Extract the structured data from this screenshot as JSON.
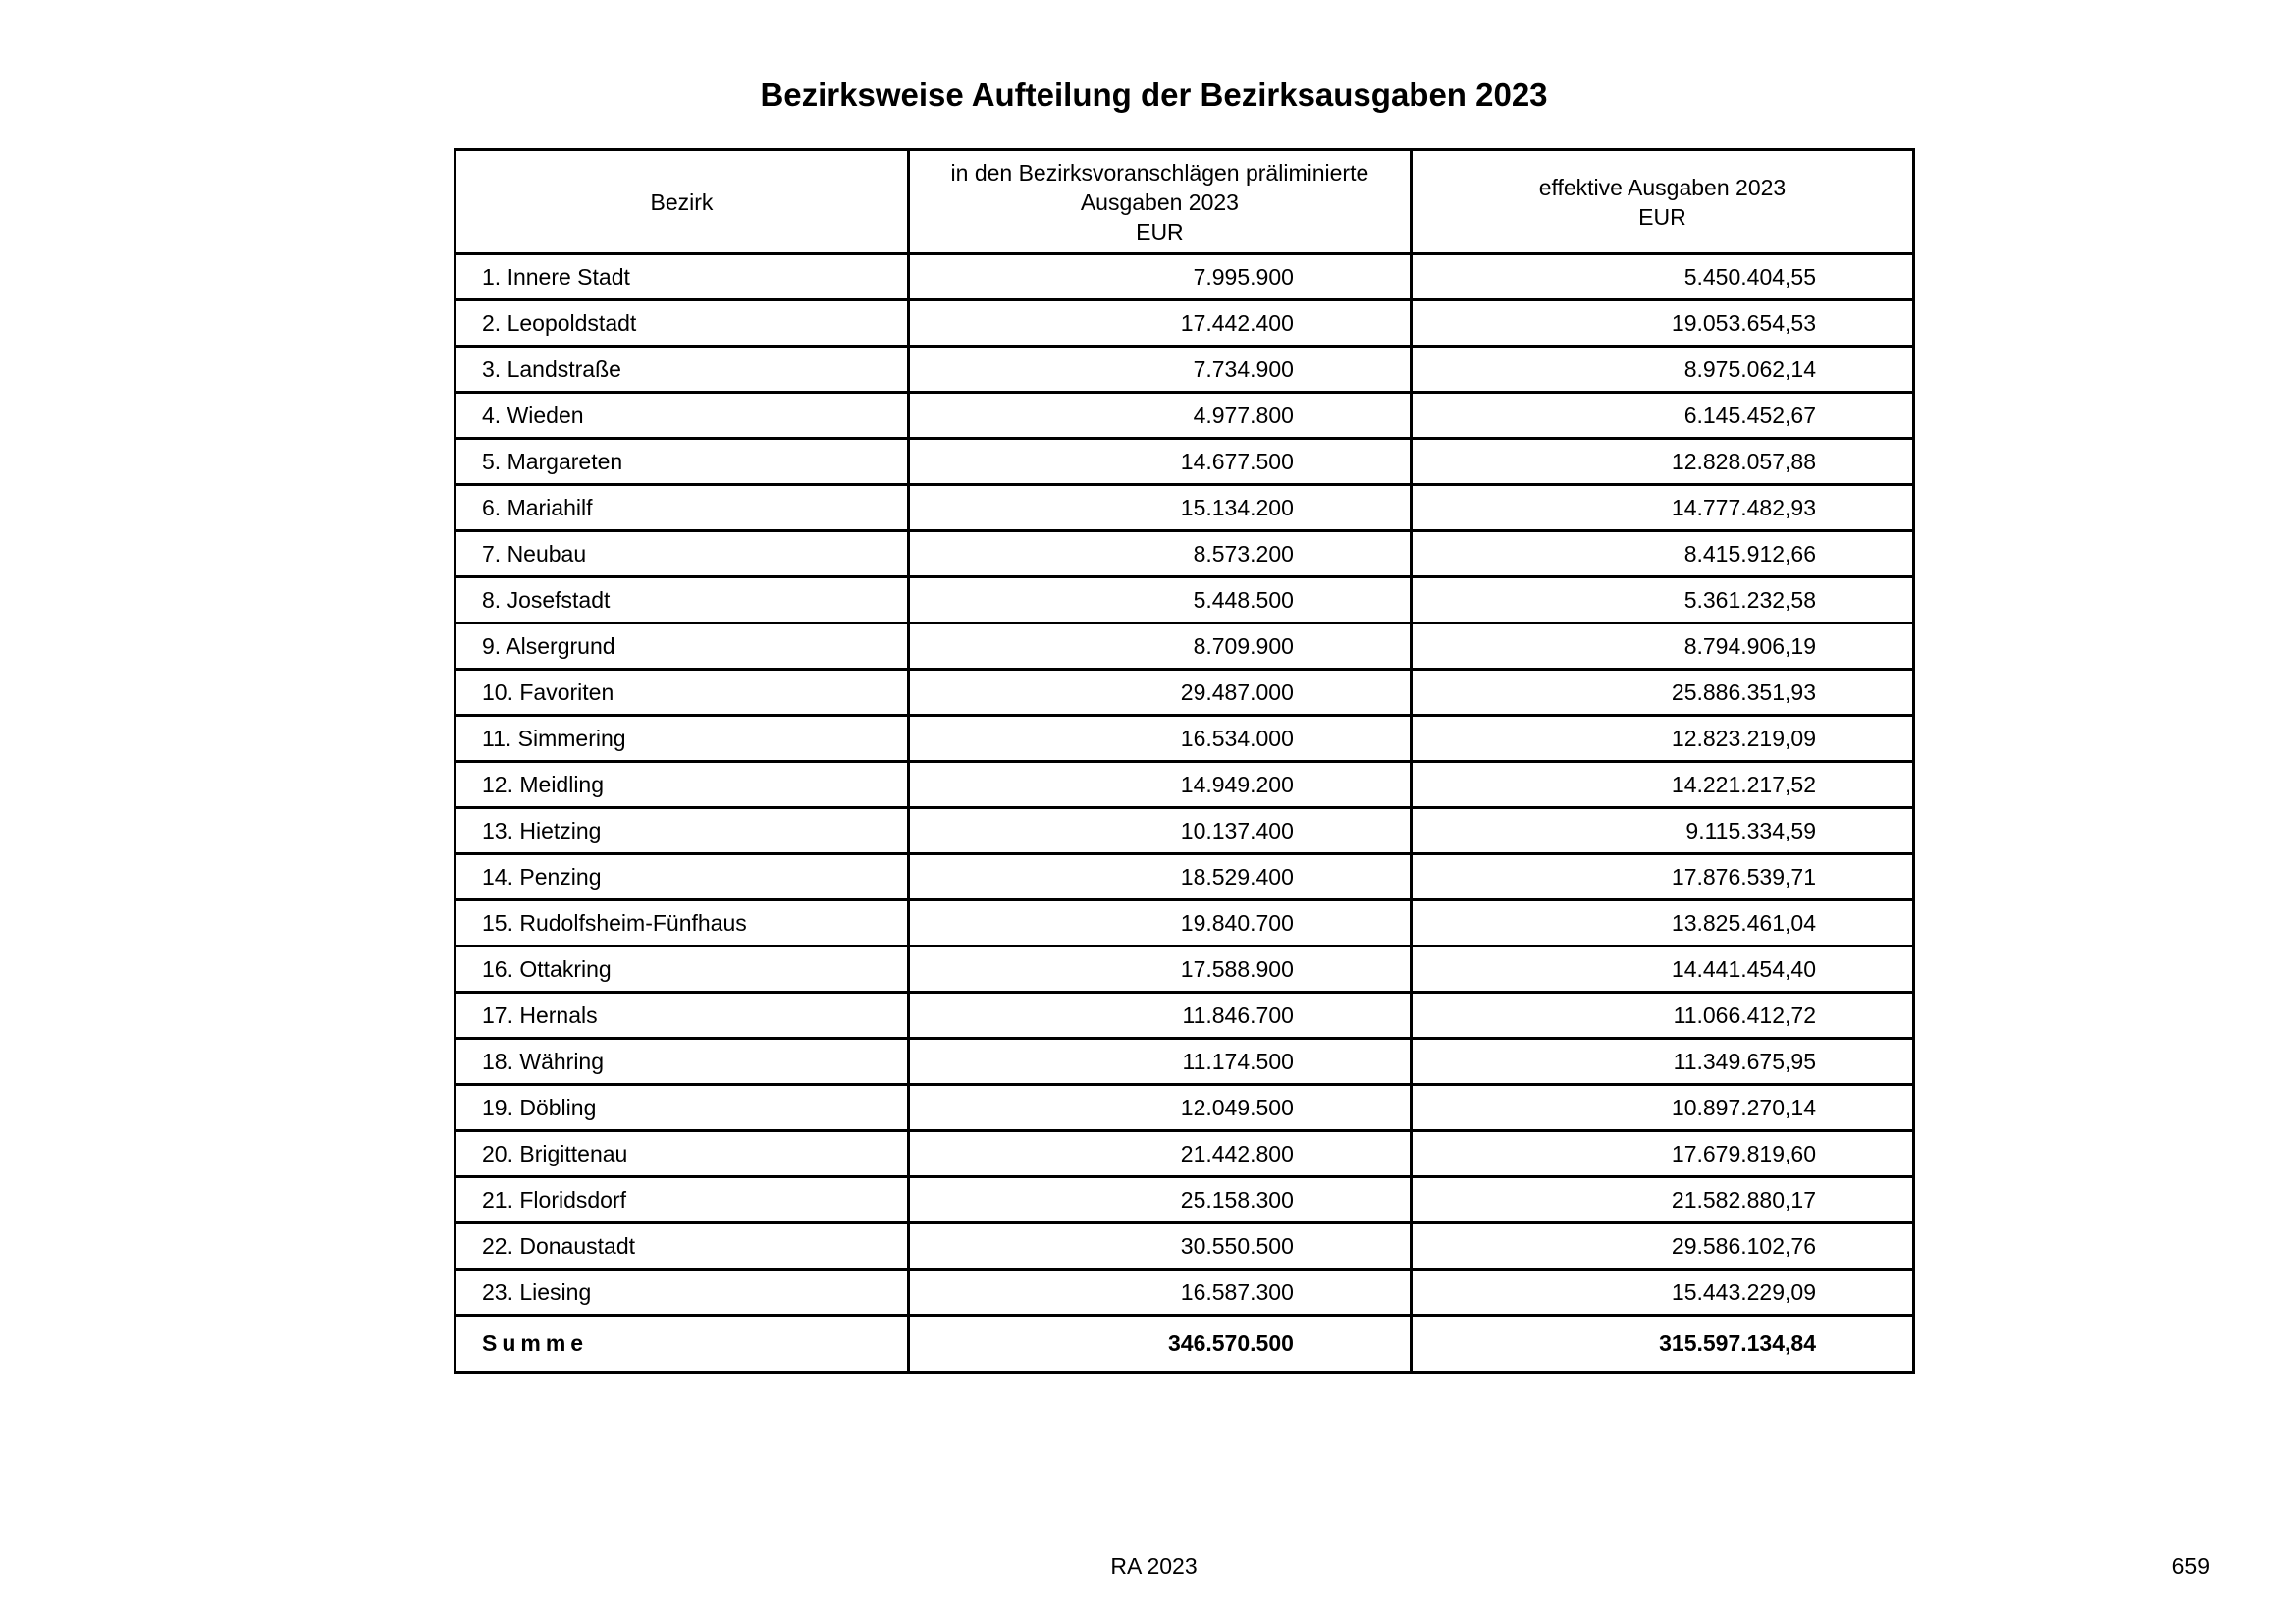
{
  "title": "Bezirksweise Aufteilung der Bezirksausgaben 2023",
  "table": {
    "headers": [
      {
        "lines": [
          "Bezirk"
        ]
      },
      {
        "lines": [
          "in den Bezirksvoranschlägen präliminierte",
          "Ausgaben 2023",
          "EUR"
        ]
      },
      {
        "lines": [
          "effektive Ausgaben 2023",
          "EUR"
        ]
      }
    ],
    "rows": [
      {
        "bezirk": "1. Innere Stadt",
        "praeliminiert": "7.995.900",
        "effektiv": "5.450.404,55"
      },
      {
        "bezirk": "2. Leopoldstadt",
        "praeliminiert": "17.442.400",
        "effektiv": "19.053.654,53"
      },
      {
        "bezirk": "3. Landstraße",
        "praeliminiert": "7.734.900",
        "effektiv": "8.975.062,14"
      },
      {
        "bezirk": "4. Wieden",
        "praeliminiert": "4.977.800",
        "effektiv": "6.145.452,67"
      },
      {
        "bezirk": "5. Margareten",
        "praeliminiert": "14.677.500",
        "effektiv": "12.828.057,88"
      },
      {
        "bezirk": "6. Mariahilf",
        "praeliminiert": "15.134.200",
        "effektiv": "14.777.482,93"
      },
      {
        "bezirk": "7. Neubau",
        "praeliminiert": "8.573.200",
        "effektiv": "8.415.912,66"
      },
      {
        "bezirk": "8. Josefstadt",
        "praeliminiert": "5.448.500",
        "effektiv": "5.361.232,58"
      },
      {
        "bezirk": "9. Alsergrund",
        "praeliminiert": "8.709.900",
        "effektiv": "8.794.906,19"
      },
      {
        "bezirk": "10. Favoriten",
        "praeliminiert": "29.487.000",
        "effektiv": "25.886.351,93"
      },
      {
        "bezirk": "11. Simmering",
        "praeliminiert": "16.534.000",
        "effektiv": "12.823.219,09"
      },
      {
        "bezirk": "12. Meidling",
        "praeliminiert": "14.949.200",
        "effektiv": "14.221.217,52"
      },
      {
        "bezirk": "13. Hietzing",
        "praeliminiert": "10.137.400",
        "effektiv": "9.115.334,59"
      },
      {
        "bezirk": "14. Penzing",
        "praeliminiert": "18.529.400",
        "effektiv": "17.876.539,71"
      },
      {
        "bezirk": "15. Rudolfsheim-Fünfhaus",
        "praeliminiert": "19.840.700",
        "effektiv": "13.825.461,04"
      },
      {
        "bezirk": "16. Ottakring",
        "praeliminiert": "17.588.900",
        "effektiv": "14.441.454,40"
      },
      {
        "bezirk": "17. Hernals",
        "praeliminiert": "11.846.700",
        "effektiv": "11.066.412,72"
      },
      {
        "bezirk": "18. Währing",
        "praeliminiert": "11.174.500",
        "effektiv": "11.349.675,95"
      },
      {
        "bezirk": "19. Döbling",
        "praeliminiert": "12.049.500",
        "effektiv": "10.897.270,14"
      },
      {
        "bezirk": "20. Brigittenau",
        "praeliminiert": "21.442.800",
        "effektiv": "17.679.819,60"
      },
      {
        "bezirk": "21. Floridsdorf",
        "praeliminiert": "25.158.300",
        "effektiv": "21.582.880,17"
      },
      {
        "bezirk": "22. Donaustadt",
        "praeliminiert": "30.550.500",
        "effektiv": "29.586.102,76"
      },
      {
        "bezirk": "23. Liesing",
        "praeliminiert": "16.587.300",
        "effektiv": "15.443.229,09"
      }
    ],
    "total": {
      "bezirk": "Summe",
      "praeliminiert": "346.570.500",
      "effektiv": "315.597.134,84"
    }
  },
  "footer": {
    "center": "RA 2023",
    "page": "659"
  }
}
